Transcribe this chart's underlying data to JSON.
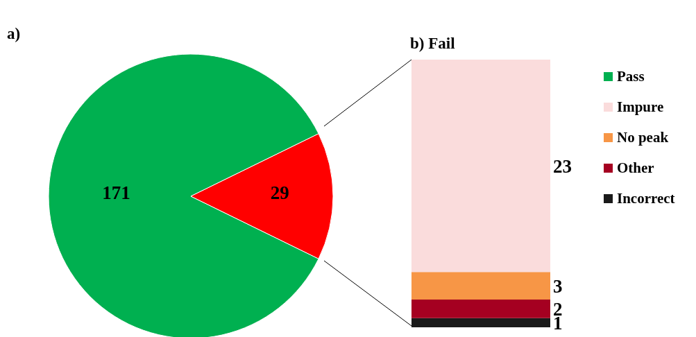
{
  "chart_data": [
    {
      "type": "pie",
      "title": "a)",
      "categories": [
        "Pass",
        null
      ],
      "values": [
        171,
        29
      ],
      "colors": [
        "#00b050",
        "#ff0000"
      ],
      "data_labels": true,
      "legend": "right"
    },
    {
      "type": "bar",
      "title": "b) Fail",
      "categories": [
        null
      ],
      "stacked": true,
      "data_labels": true,
      "legend": "right",
      "series": [
        {
          "name": "Incorrect",
          "color": "#1a1a1a",
          "values": [
            1
          ]
        },
        {
          "name": "Other",
          "color": "#a50021",
          "values": [
            2
          ]
        },
        {
          "name": "No peak",
          "color": "#f79646",
          "values": [
            3
          ]
        },
        {
          "name": "Impure",
          "color": "#fadcdc",
          "values": [
            23
          ]
        }
      ]
    }
  ]
}
